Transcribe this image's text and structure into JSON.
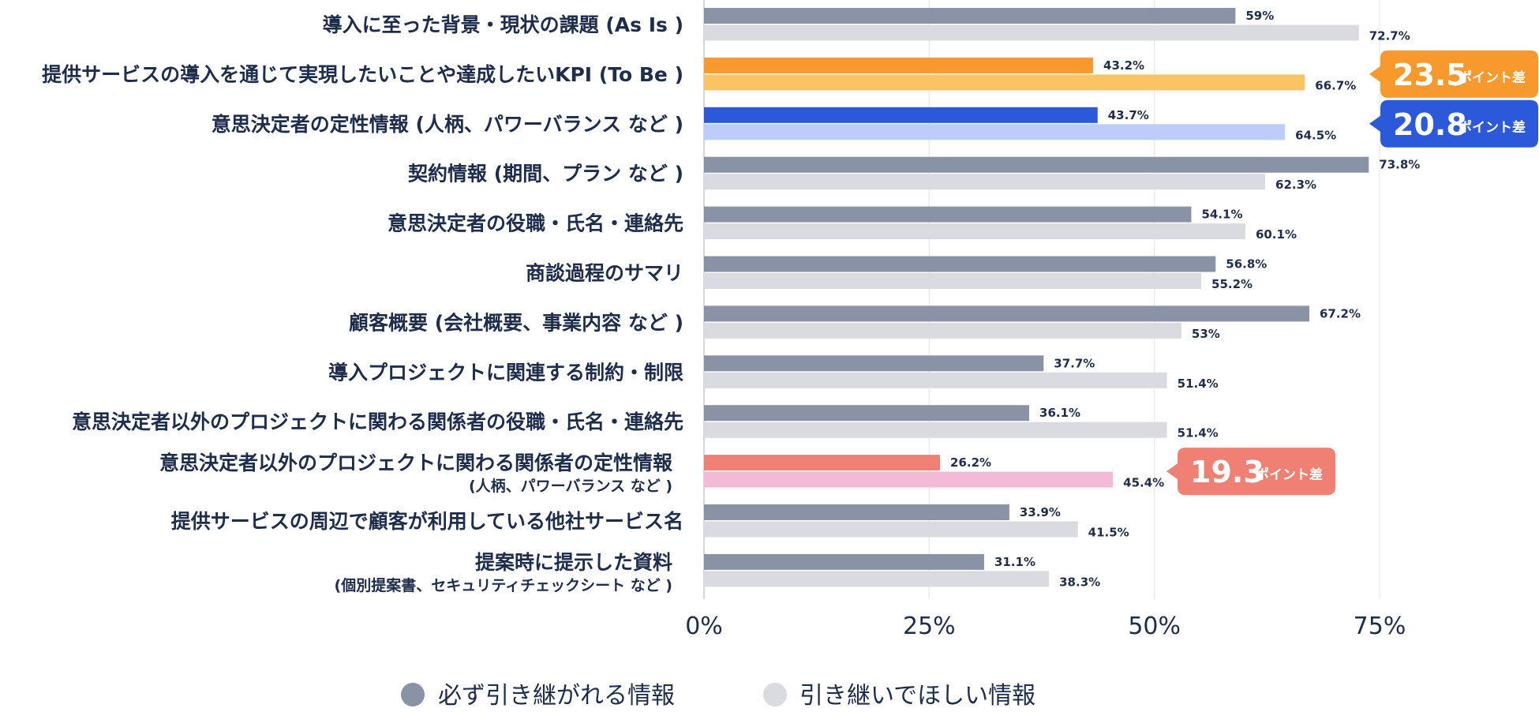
{
  "chart_data": {
    "type": "bar",
    "orientation": "horizontal",
    "categories": [
      {
        "label": "導入に至った背景・現状の課題 (As Is )",
        "sublabel": ""
      },
      {
        "label": "提供サービスの導入を通じて実現したいことや達成したいKPI (To Be )",
        "sublabel": ""
      },
      {
        "label": "意思決定者の定性情報 (人柄、パワーバランス など )",
        "sublabel": ""
      },
      {
        "label": "契約情報 (期間、プラン など )",
        "sublabel": ""
      },
      {
        "label": "意思決定者の役職・氏名・連絡先",
        "sublabel": ""
      },
      {
        "label": "商談過程のサマリ",
        "sublabel": ""
      },
      {
        "label": "顧客概要 (会社概要、事業内容 など )",
        "sublabel": ""
      },
      {
        "label": "導入プロジェクトに関連する制約・制限",
        "sublabel": ""
      },
      {
        "label": "意思決定者以外のプロジェクトに関わる関係者の役職・氏名・連絡先",
        "sublabel": ""
      },
      {
        "label": "意思決定者以外のプロジェクトに関わる関係者の定性情報",
        "sublabel": "(人柄、パワーバランス など )"
      },
      {
        "label": "提供サービスの周辺で顧客が利用している他社サービス名",
        "sublabel": ""
      },
      {
        "label": "提案時に提示した資料",
        "sublabel": "(個別提案書、セキュリティチェックシート など )"
      }
    ],
    "series": [
      {
        "name": "必ず引き継がれる情報",
        "color": "#8a93a6",
        "values": [
          59,
          43.2,
          43.7,
          73.8,
          54.1,
          56.8,
          67.2,
          37.7,
          36.1,
          26.2,
          33.9,
          31.1
        ],
        "value_labels": [
          "59%",
          "43.2%",
          "43.7%",
          "73.8%",
          "54.1%",
          "56.8%",
          "67.2%",
          "37.7%",
          "36.1%",
          "26.2%",
          "33.9%",
          "31.1%"
        ]
      },
      {
        "name": "引き継いでほしい情報",
        "color": "#dadbe0",
        "values": [
          72.7,
          66.7,
          64.5,
          62.3,
          60.1,
          55.2,
          53,
          51.4,
          51.4,
          45.4,
          41.5,
          38.3
        ],
        "value_labels": [
          "72.7%",
          "66.7%",
          "64.5%",
          "62.3%",
          "60.1%",
          "55.2%",
          "53%",
          "51.4%",
          "51.4%",
          "45.4%",
          "41.5%",
          "38.3%"
        ]
      }
    ],
    "highlights": [
      {
        "category_index": 1,
        "color_primary": "#f7992d",
        "color_secondary": "#f9c461",
        "callout_color": "#f7992d",
        "value": "23.5",
        "unit": "ポイント差"
      },
      {
        "category_index": 2,
        "color_primary": "#2b59d9",
        "color_secondary": "#bccdfb",
        "callout_color": "#2b59d9",
        "value": "20.8",
        "unit": "ポイント差"
      },
      {
        "category_index": 9,
        "color_primary": "#f08074",
        "color_secondary": "#f2bad6",
        "callout_color": "#f08074",
        "value": "19.3",
        "unit": "ポイント差"
      }
    ],
    "xlim": [
      0,
      75
    ],
    "xticks": [
      0,
      25,
      50,
      75
    ],
    "xtick_labels": [
      "0%",
      "25%",
      "50%",
      "75%"
    ],
    "grid": true,
    "legend_position": "bottom-center",
    "title": "",
    "xlabel": "",
    "ylabel": ""
  }
}
